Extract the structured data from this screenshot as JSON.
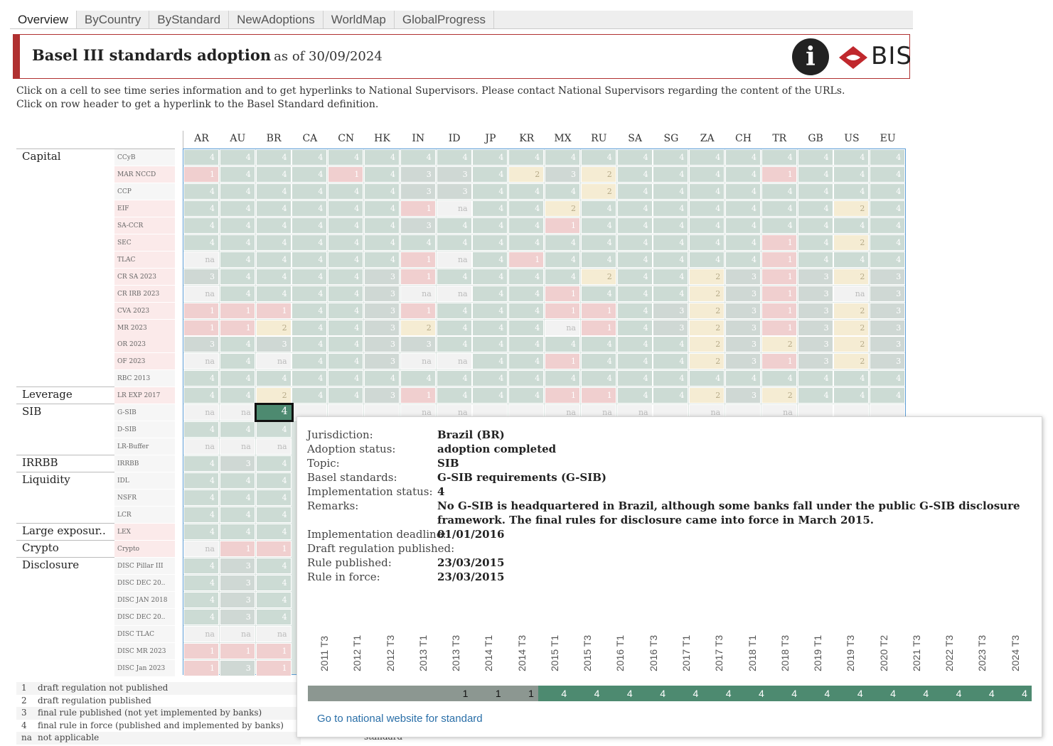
{
  "tabs": [
    "Overview",
    "ByCountry",
    "ByStandard",
    "NewAdoptions",
    "WorldMap",
    "GlobalProgress"
  ],
  "header": {
    "title": "Basel III standards adoption",
    "as_of": "as of 30/09/2024",
    "logo_text": "BIS",
    "info_glyph": "i"
  },
  "intro": {
    "line1": "Click on a cell to see time series information and to get hyperlinks to National Supervisors. Please contact National Supervisors regarding the content of the URLs.",
    "line2": "Click on row header to get a hyperlink to the Basel Standard definition."
  },
  "columns": [
    "AR",
    "AU",
    "BR",
    "CA",
    "CN",
    "HK",
    "IN",
    "ID",
    "JP",
    "KR",
    "MX",
    "RU",
    "SA",
    "SG",
    "ZA",
    "CH",
    "TR",
    "GB",
    "US",
    "EU"
  ],
  "topics": [
    {
      "label": "Capital",
      "row": 0
    },
    {
      "label": "Leverage",
      "row": 14
    },
    {
      "label": "SIB",
      "row": 15
    },
    {
      "label": "IRRBB",
      "row": 18
    },
    {
      "label": "Liquidity",
      "row": 19
    },
    {
      "label": "Large exposur..",
      "row": 22
    },
    {
      "label": "Crypto",
      "row": 23
    },
    {
      "label": "Disclosure",
      "row": 24
    }
  ],
  "rows": [
    {
      "label": "CCyB",
      "cells": [
        "4",
        "4",
        "4",
        "4",
        "4",
        "4",
        "4",
        "4",
        "4",
        "4",
        "4",
        "4",
        "4",
        "4",
        "4",
        "4",
        "4",
        "4",
        "4",
        "4"
      ]
    },
    {
      "label": "MAR NCCD",
      "cells": [
        "1",
        "4",
        "4",
        "4",
        "1",
        "4",
        "3",
        "3",
        "4",
        "2",
        "3",
        "2",
        "4",
        "4",
        "4",
        "4",
        "1",
        "4",
        "4",
        "4"
      ]
    },
    {
      "label": "CCP",
      "cells": [
        "4",
        "4",
        "4",
        "4",
        "4",
        "4",
        "3",
        "3",
        "4",
        "4",
        "4",
        "2",
        "4",
        "4",
        "4",
        "4",
        "4",
        "4",
        "4",
        "4"
      ]
    },
    {
      "label": "EIF",
      "cells": [
        "4",
        "4",
        "4",
        "4",
        "4",
        "4",
        "1",
        "na",
        "4",
        "4",
        "2",
        "4",
        "4",
        "4",
        "4",
        "4",
        "4",
        "4",
        "2",
        "4"
      ]
    },
    {
      "label": "SA-CCR",
      "cells": [
        "4",
        "4",
        "4",
        "4",
        "4",
        "4",
        "3",
        "4",
        "4",
        "4",
        "1",
        "4",
        "4",
        "4",
        "4",
        "4",
        "4",
        "4",
        "4",
        "4"
      ]
    },
    {
      "label": "SEC",
      "cells": [
        "4",
        "4",
        "4",
        "4",
        "4",
        "4",
        "4",
        "4",
        "4",
        "4",
        "4",
        "4",
        "4",
        "4",
        "4",
        "4",
        "1",
        "4",
        "2",
        "4"
      ]
    },
    {
      "label": "TLAC",
      "cells": [
        "na",
        "4",
        "4",
        "4",
        "4",
        "4",
        "1",
        "na",
        "4",
        "1",
        "4",
        "4",
        "4",
        "4",
        "4",
        "4",
        "1",
        "4",
        "4",
        "4"
      ]
    },
    {
      "label": "CR SA 2023",
      "cells": [
        "3",
        "4",
        "4",
        "4",
        "4",
        "3",
        "1",
        "4",
        "4",
        "4",
        "4",
        "2",
        "4",
        "4",
        "2",
        "3",
        "1",
        "3",
        "2",
        "3"
      ]
    },
    {
      "label": "CR IRB 2023",
      "cells": [
        "na",
        "4",
        "4",
        "4",
        "4",
        "3",
        "na",
        "na",
        "4",
        "4",
        "1",
        "4",
        "4",
        "4",
        "2",
        "3",
        "1",
        "3",
        "na",
        "3"
      ]
    },
    {
      "label": "CVA 2023",
      "cells": [
        "1",
        "1",
        "1",
        "4",
        "4",
        "3",
        "1",
        "4",
        "4",
        "4",
        "1",
        "1",
        "4",
        "3",
        "2",
        "3",
        "1",
        "3",
        "2",
        "3"
      ]
    },
    {
      "label": "MR 2023",
      "cells": [
        "1",
        "1",
        "2",
        "4",
        "4",
        "3",
        "2",
        "4",
        "4",
        "4",
        "na",
        "1",
        "4",
        "3",
        "2",
        "3",
        "1",
        "3",
        "2",
        "3"
      ]
    },
    {
      "label": "OR 2023",
      "cells": [
        "3",
        "4",
        "3",
        "4",
        "4",
        "3",
        "3",
        "4",
        "4",
        "4",
        "4",
        "4",
        "4",
        "4",
        "2",
        "3",
        "2",
        "3",
        "2",
        "3"
      ]
    },
    {
      "label": "OF 2023",
      "cells": [
        "na",
        "4",
        "na",
        "4",
        "4",
        "3",
        "na",
        "na",
        "4",
        "4",
        "1",
        "4",
        "4",
        "4",
        "2",
        "3",
        "1",
        "3",
        "2",
        "3"
      ]
    },
    {
      "label": "RBC 2013",
      "cells": [
        "4",
        "4",
        "4",
        "4",
        "4",
        "4",
        "4",
        "4",
        "4",
        "4",
        "4",
        "4",
        "4",
        "4",
        "4",
        "4",
        "4",
        "4",
        "4",
        "4"
      ]
    },
    {
      "label": "LR EXP 2017",
      "cells": [
        "4",
        "4",
        "2",
        "4",
        "4",
        "3",
        "1",
        "4",
        "4",
        "4",
        "1",
        "1",
        "4",
        "4",
        "2",
        "3",
        "2",
        "4",
        "4",
        "4"
      ]
    },
    {
      "label": "G-SIB",
      "cells": [
        "na",
        "na",
        "4",
        "",
        "",
        "",
        "na",
        "na",
        "",
        "",
        "na",
        "na",
        "na",
        "",
        "na",
        "",
        "na",
        "",
        "",
        ""
      ]
    },
    {
      "label": "D-SIB",
      "cells": [
        "4",
        "4",
        "4"
      ]
    },
    {
      "label": "LR-Buffer",
      "cells": [
        "na",
        "na",
        "na"
      ]
    },
    {
      "label": "IRRBB",
      "cells": [
        "4",
        "3",
        "4"
      ]
    },
    {
      "label": "IDL",
      "cells": [
        "4",
        "4",
        "4"
      ]
    },
    {
      "label": "NSFR",
      "cells": [
        "4",
        "4",
        "4"
      ]
    },
    {
      "label": "LCR",
      "cells": [
        "4",
        "4",
        "4"
      ]
    },
    {
      "label": "LEX",
      "cells": [
        "4",
        "4",
        "4"
      ]
    },
    {
      "label": "Crypto",
      "cells": [
        "na",
        "1",
        "1"
      ]
    },
    {
      "label": "DISC Pillar III",
      "cells": [
        "4",
        "3",
        "4"
      ]
    },
    {
      "label": "DISC DEC 20..",
      "cells": [
        "4",
        "3",
        "4"
      ]
    },
    {
      "label": "DISC JAN 2018",
      "cells": [
        "4",
        "3",
        "4"
      ]
    },
    {
      "label": "DISC DEC 20..",
      "cells": [
        "4",
        "3",
        "4"
      ]
    },
    {
      "label": "DISC TLAC",
      "cells": [
        "na",
        "na",
        "na"
      ]
    },
    {
      "label": "DISC MR 2023",
      "cells": [
        "1",
        "1",
        "1"
      ]
    },
    {
      "label": "DISC Jan 2023",
      "cells": [
        "1",
        "3",
        "1"
      ]
    }
  ],
  "selected_cell": {
    "row": 15,
    "col": 2
  },
  "legend": [
    {
      "key": "1",
      "text": "draft regulation not published"
    },
    {
      "key": "2",
      "text": "draft regulation published"
    },
    {
      "key": "3",
      "text": "final rule published (not yet implemented by banks)"
    },
    {
      "key": "4",
      "text": "final rule in force (published and implemented by banks)"
    },
    {
      "key": "na",
      "text": "not applicable"
    }
  ],
  "legend_stub": "standard",
  "tooltip": {
    "fields": [
      {
        "label": "Jurisdiction:",
        "value": "Brazil (BR)"
      },
      {
        "label": "Adoption status:",
        "value": "adoption completed"
      },
      {
        "label": "Topic:",
        "value": "SIB"
      },
      {
        "label": "Basel standards:",
        "value": "G-SIB requirements  (G-SIB)"
      },
      {
        "label": "Implementation status:",
        "value": "4"
      },
      {
        "label": "Remarks:",
        "value": "No G-SIB is headquartered in Brazil, although some banks fall under the public G-SIB disclosure framework. The final rules for disclosure came into force in March 2015."
      },
      {
        "label": "Implementation deadline:",
        "value": "01/01/2016"
      },
      {
        "label": "Draft regulation published:",
        "value": ""
      },
      {
        "label": "Rule published:",
        "value": "23/03/2015"
      },
      {
        "label": "Rule in force:",
        "value": "23/03/2015"
      }
    ],
    "timeseries": {
      "periods": [
        "2011 T3",
        "2012 T1",
        "2012 T3",
        "2013 T1",
        "2013 T3",
        "2014 T1",
        "2014 T3",
        "2015 T1",
        "2015 T3",
        "2016 T1",
        "2016 T3",
        "2017 T1",
        "2017 T3",
        "2018 T1",
        "2018 T3",
        "2019 T1",
        "2019 T3",
        "2020 T2",
        "2021 T3",
        "2022 T3",
        "2023 T3",
        "2024 T3"
      ],
      "values": [
        "",
        "",
        "",
        "",
        "1",
        "1",
        "1",
        "4",
        "4",
        "4",
        "4",
        "4",
        "4",
        "4",
        "4",
        "4",
        "4",
        "4",
        "4",
        "4",
        "4",
        "4"
      ]
    },
    "link": "Go to national website for standard"
  },
  "colors": {
    "status4": "#ccdbd4",
    "status3": "#cfd8d4",
    "status2": "#f5ecd3",
    "status1": "#f0cfcf",
    "selected": "#4d8a70",
    "accent": "#b03030"
  }
}
